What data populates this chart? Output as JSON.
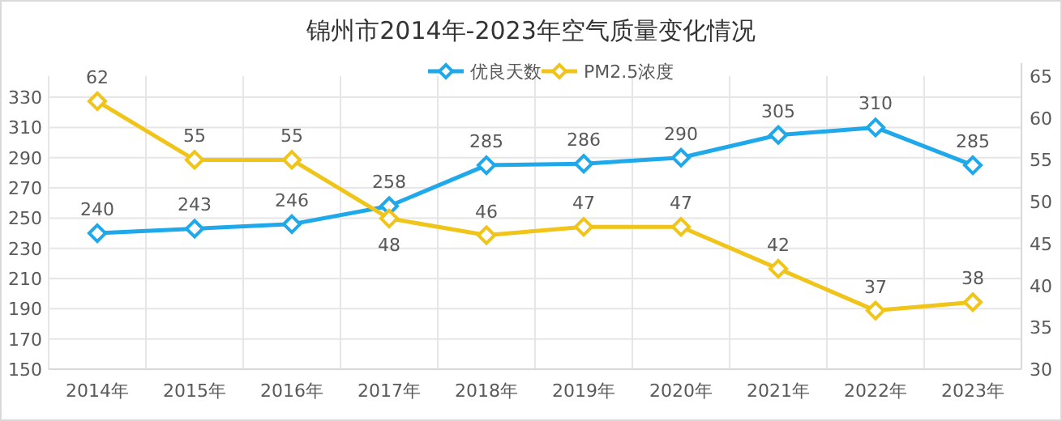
{
  "chart_data": {
    "type": "line",
    "title": "锦州市2014年-2023年空气质量变化情况",
    "categories": [
      "2014年",
      "2015年",
      "2016年",
      "2017年",
      "2018年",
      "2019年",
      "2020年",
      "2021年",
      "2022年",
      "2023年"
    ],
    "series": [
      {
        "name": "优良天数",
        "color": "#1fa8ea",
        "values": [
          240,
          243,
          246,
          258,
          285,
          286,
          290,
          305,
          310,
          285
        ]
      },
      {
        "name": "PM2.5浓度",
        "color": "#f0c419",
        "values": [
          62,
          55,
          55,
          48,
          46,
          47,
          47,
          42,
          37,
          38
        ],
        "axis": "y2"
      }
    ],
    "ylim": [
      150,
      344
    ],
    "yticks": [
      150,
      170,
      190,
      210,
      230,
      250,
      270,
      290,
      310,
      330
    ],
    "y2lim": [
      30,
      65
    ],
    "y2ticks": [
      30,
      35,
      40,
      45,
      50,
      55,
      60,
      65
    ],
    "data_labels": true,
    "grid": true,
    "legend": "top",
    "marker": "diamond",
    "line_style": "solid"
  }
}
